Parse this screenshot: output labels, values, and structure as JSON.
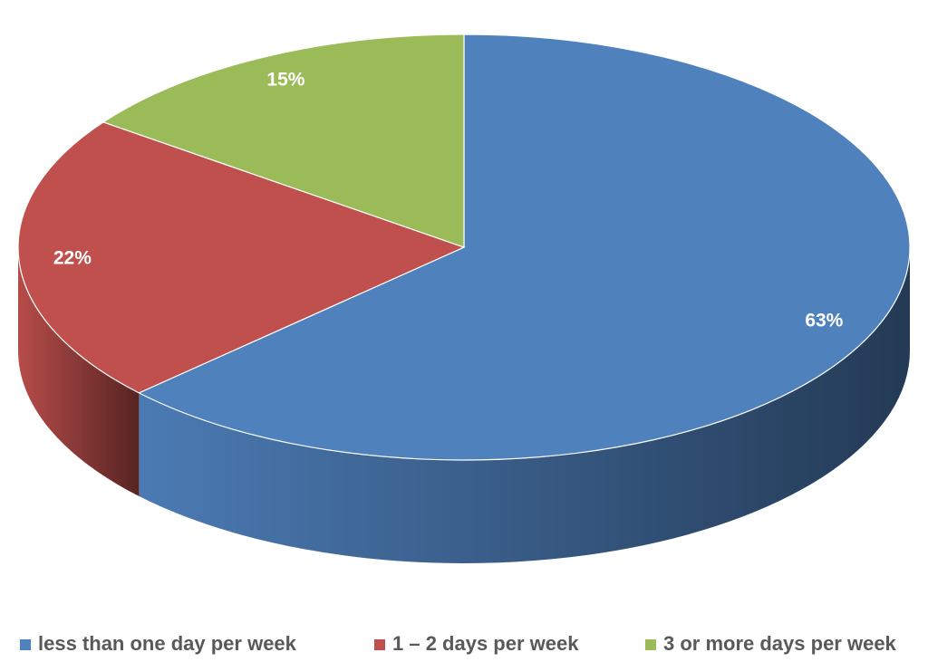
{
  "chart_data": {
    "type": "pie",
    "categories": [
      "less than one day per week",
      "1 – 2 days per week",
      "3 or more days per week"
    ],
    "values": [
      63,
      22,
      15
    ],
    "value_labels": [
      "63%",
      "22%",
      "15%"
    ],
    "colors": [
      "#4f81bd",
      "#c0504d",
      "#9bbb59"
    ],
    "legend": "bottom"
  }
}
